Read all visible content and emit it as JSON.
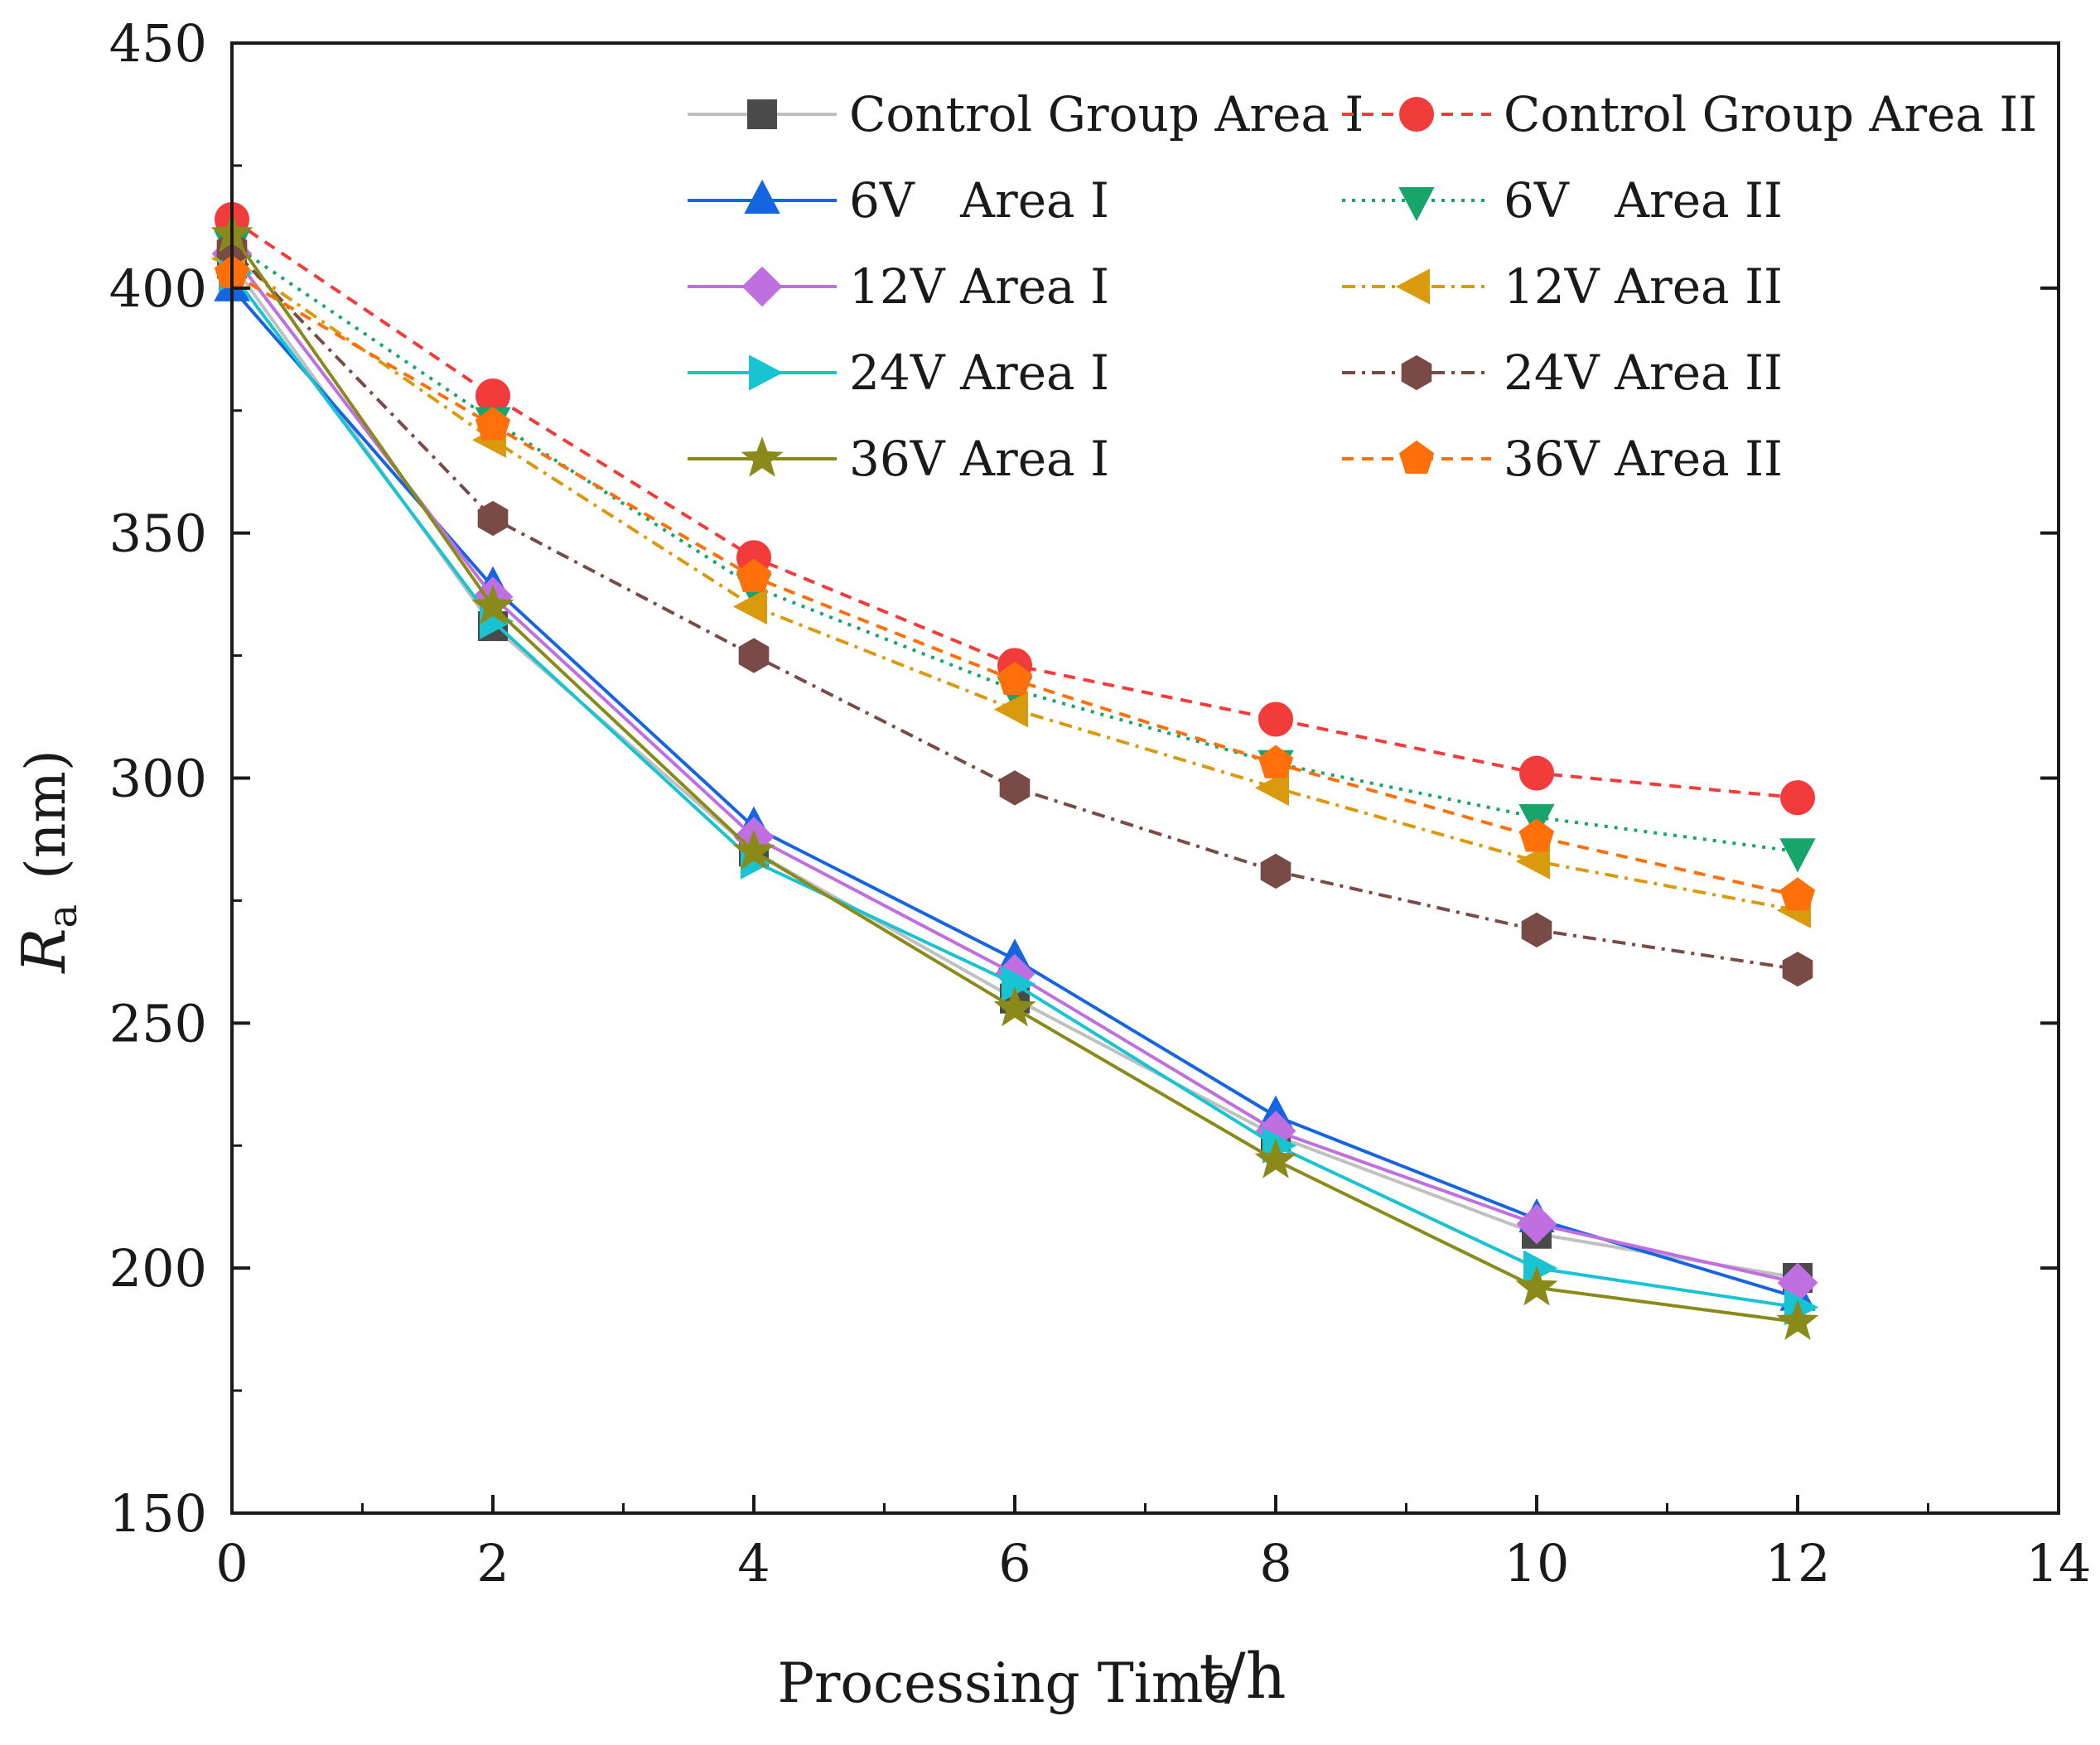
{
  "chart_data": {
    "type": "line",
    "title": "",
    "xlabel": "Processing Time",
    "xlabel_unit": "t/h",
    "ylabel_symbol": "R",
    "ylabel_subscript": "a",
    "ylabel_unit": "(nm)",
    "xlim": [
      0,
      14
    ],
    "ylim": [
      150,
      450
    ],
    "x_ticks": [
      "0",
      "2",
      "4",
      "6",
      "8",
      "10",
      "12",
      "14"
    ],
    "y_ticks": [
      "150",
      "200",
      "250",
      "300",
      "350",
      "400",
      "450"
    ],
    "x": [
      0,
      2,
      4,
      6,
      8,
      10,
      12
    ],
    "legend_position": "top-right",
    "series": [
      {
        "name": "Control Group Area I",
        "color": "#4a4a4a",
        "line_color": "#c0c0c0",
        "marker": "square",
        "dash": "solid",
        "values": [
          405,
          331,
          285,
          255,
          227,
          207,
          198
        ]
      },
      {
        "name": "Control Group Area II",
        "color": "#f23b3b",
        "line_color": "#f23b3b",
        "marker": "circle",
        "dash": "dashed",
        "values": [
          414,
          378,
          345,
          323,
          312,
          301,
          296
        ]
      },
      {
        "name": "6V   Area I",
        "color": "#1565e0",
        "line_color": "#1565e0",
        "marker": "triangle-up",
        "dash": "solid",
        "values": [
          400,
          339,
          290,
          263,
          231,
          210,
          194
        ]
      },
      {
        "name": "6V   Area II",
        "color": "#17a56b",
        "line_color": "#17a56b",
        "marker": "triangle-down",
        "dash": "dotted",
        "values": [
          409,
          373,
          339,
          318,
          303,
          292,
          285
        ]
      },
      {
        "name": "12V Area I",
        "color": "#bf6fe0",
        "line_color": "#bf6fe0",
        "marker": "diamond",
        "dash": "solid",
        "values": [
          407,
          337,
          288,
          260,
          228,
          209,
          197
        ]
      },
      {
        "name": "12V Area II",
        "color": "#d99a0d",
        "line_color": "#d99a0d",
        "marker": "triangle-left",
        "dash": "dashdot",
        "values": [
          406,
          369,
          335,
          314,
          298,
          283,
          273
        ]
      },
      {
        "name": "24V Area I",
        "color": "#18c4d2",
        "line_color": "#18c4d2",
        "marker": "triangle-right",
        "dash": "solid",
        "values": [
          403,
          332,
          283,
          258,
          225,
          200,
          192
        ]
      },
      {
        "name": "24V Area II",
        "color": "#7a4a46",
        "line_color": "#7a4a46",
        "marker": "hexagon",
        "dash": "dashdot",
        "values": [
          408,
          353,
          325,
          298,
          281,
          269,
          261
        ]
      },
      {
        "name": "36V Area I",
        "color": "#8a8a1a",
        "line_color": "#8a8a1a",
        "marker": "star",
        "dash": "solid",
        "values": [
          411,
          335,
          285,
          253,
          222,
          196,
          189
        ]
      },
      {
        "name": "36V Area II",
        "color": "#ff6f0a",
        "line_color": "#ff6f0a",
        "marker": "pentagon",
        "dash": "dashed",
        "values": [
          403,
          372,
          341,
          320,
          303,
          288,
          276
        ]
      }
    ]
  }
}
